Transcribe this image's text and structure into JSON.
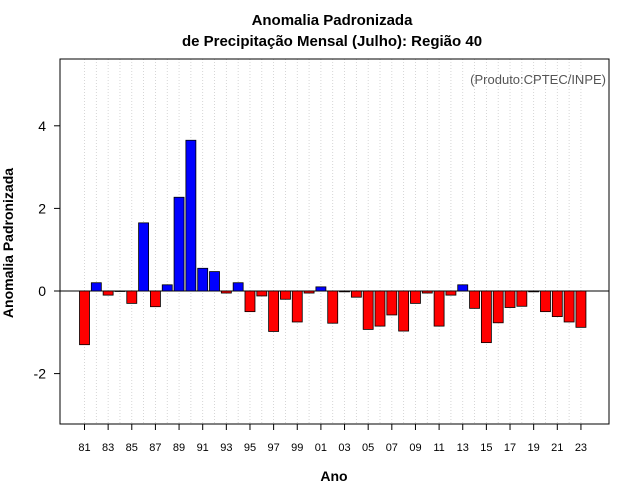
{
  "chart_data": {
    "type": "bar",
    "title": [
      "Anomalia Padronizada",
      "de Precipitação Mensal (Julho): Região 40"
    ],
    "xlabel": "Ano",
    "ylabel": "Anomalia Padronizada",
    "credit": "(Produto:CPTEC/INPE)",
    "ylim": [
      -3.2,
      5.7
    ],
    "yticks": [
      -2,
      0,
      2,
      4
    ],
    "grid": "vertical dotted",
    "colors": {
      "positive": "#0000ff",
      "negative": "#ff0000",
      "border": "#000000",
      "grid": "#cccccc",
      "credit": "#555555"
    },
    "x": [
      1981,
      1982,
      1983,
      1984,
      1985,
      1986,
      1987,
      1988,
      1989,
      1990,
      1991,
      1992,
      1993,
      1994,
      1995,
      1996,
      1997,
      1998,
      1999,
      2000,
      2001,
      2002,
      2003,
      2004,
      2005,
      2006,
      2007,
      2008,
      2009,
      2010,
      2011,
      2012,
      2013,
      2014,
      2015,
      2016,
      2017,
      2018,
      2019,
      2020,
      2021,
      2022,
      2023
    ],
    "xtick_labels": [
      "81",
      "83",
      "85",
      "87",
      "89",
      "91",
      "93",
      "95",
      "97",
      "99",
      "01",
      "03",
      "05",
      "07",
      "09",
      "11",
      "13",
      "15",
      "17",
      "19",
      "21",
      "23"
    ],
    "values": [
      -1.3,
      0.2,
      -0.1,
      0.0,
      -0.3,
      1.65,
      -0.38,
      0.15,
      2.27,
      3.65,
      0.55,
      0.47,
      -0.05,
      0.2,
      -0.5,
      -0.12,
      -0.98,
      -0.2,
      -0.75,
      -0.05,
      0.1,
      -0.78,
      -0.02,
      -0.15,
      -0.93,
      -0.85,
      -0.58,
      -0.97,
      -0.3,
      -0.05,
      -0.85,
      -0.1,
      0.15,
      -0.42,
      -1.25,
      -0.77,
      -0.4,
      -0.37,
      -0.02,
      -0.5,
      -0.62,
      -0.75,
      -0.88
    ]
  }
}
